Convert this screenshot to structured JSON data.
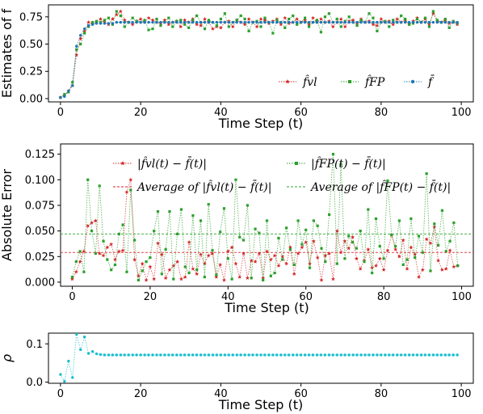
{
  "chart_data": [
    {
      "type": "line",
      "xlabel": "Time Step (t)",
      "ylabel": "Estimates of f̄",
      "xlim": [
        -3,
        103
      ],
      "ylim": [
        -0.03,
        0.86
      ],
      "xticks": [
        "0",
        "20",
        "40",
        "60",
        "80",
        "100"
      ],
      "yticks": [
        "0.00",
        "0.25",
        "0.50",
        "0.75"
      ],
      "grid": false,
      "legend_position": "lower-right",
      "series": [
        {
          "name": "f̂vl",
          "color": "#d62728",
          "marker": "star",
          "values": [
            0.01,
            0.03,
            0.07,
            0.12,
            0.4,
            0.55,
            0.62,
            0.7,
            0.69,
            0.7,
            0.73,
            0.7,
            0.68,
            0.73,
            0.77,
            0.8,
            0.72,
            0.7,
            0.68,
            0.71,
            0.73,
            0.7,
            0.74,
            0.72,
            0.7,
            0.69,
            0.72,
            0.68,
            0.7,
            0.71,
            0.66,
            0.72,
            0.7,
            0.73,
            0.68,
            0.67,
            0.73,
            0.7,
            0.64,
            0.66,
            0.65,
            0.7,
            0.71,
            0.66,
            0.72,
            0.7,
            0.68,
            0.73,
            0.7,
            0.66,
            0.73,
            0.72,
            0.69,
            0.71,
            0.73,
            0.68,
            0.74,
            0.69,
            0.7,
            0.73,
            0.7,
            0.72,
            0.68,
            0.74,
            0.7,
            0.73,
            0.7,
            0.71,
            0.66,
            0.7,
            0.73,
            0.66,
            0.71,
            0.72,
            0.69,
            0.73,
            0.7,
            0.71,
            0.68,
            0.67,
            0.73,
            0.7,
            0.71,
            0.68,
            0.73,
            0.7,
            0.72,
            0.68,
            0.71,
            0.74,
            0.7,
            0.73,
            0.68,
            0.78,
            0.71,
            0.7,
            0.72,
            0.69,
            0.7,
            0.68
          ]
        },
        {
          "name": "f̂FP",
          "color": "#2ca02c",
          "marker": "square",
          "values": [
            0.01,
            0.04,
            0.06,
            0.15,
            0.45,
            0.5,
            0.6,
            0.66,
            0.7,
            0.71,
            0.7,
            0.72,
            0.74,
            0.68,
            0.8,
            0.76,
            0.66,
            0.7,
            0.74,
            0.71,
            0.7,
            0.72,
            0.63,
            0.64,
            0.73,
            0.67,
            0.7,
            0.74,
            0.66,
            0.71,
            0.72,
            0.68,
            0.65,
            0.72,
            0.76,
            0.7,
            0.64,
            0.72,
            0.7,
            0.67,
            0.73,
            0.78,
            0.66,
            0.7,
            0.72,
            0.76,
            0.73,
            0.62,
            0.7,
            0.71,
            0.66,
            0.74,
            0.7,
            0.6,
            0.72,
            0.7,
            0.65,
            0.73,
            0.76,
            0.68,
            0.7,
            0.74,
            0.66,
            0.7,
            0.72,
            0.61,
            0.75,
            0.78,
            0.7,
            0.73,
            0.66,
            0.71,
            0.75,
            0.7,
            0.67,
            0.72,
            0.7,
            0.78,
            0.74,
            0.62,
            0.7,
            0.71,
            0.66,
            0.72,
            0.7,
            0.76,
            0.73,
            0.68,
            0.69,
            0.73,
            0.7,
            0.74,
            0.66,
            0.8,
            0.72,
            0.7,
            0.73,
            0.65,
            0.71,
            0.69
          ]
        },
        {
          "name": "f̄",
          "color": "#1f77b4",
          "marker": "dot",
          "values": [
            0.01,
            0.02,
            0.07,
            0.12,
            0.48,
            0.58,
            0.64,
            0.67,
            0.68,
            0.69,
            0.69,
            0.69,
            0.69,
            0.69,
            0.7,
            0.7,
            0.7,
            0.7,
            0.7,
            0.7,
            0.7,
            0.7,
            0.7,
            0.7,
            0.7,
            0.7,
            0.7,
            0.7,
            0.7,
            0.7,
            0.7,
            0.7,
            0.7,
            0.7,
            0.7,
            0.7,
            0.7,
            0.7,
            0.7,
            0.7,
            0.7,
            0.7,
            0.7,
            0.7,
            0.7,
            0.7,
            0.7,
            0.7,
            0.7,
            0.7,
            0.7,
            0.7,
            0.7,
            0.7,
            0.7,
            0.7,
            0.7,
            0.7,
            0.7,
            0.7,
            0.7,
            0.7,
            0.7,
            0.7,
            0.7,
            0.7,
            0.7,
            0.7,
            0.7,
            0.7,
            0.7,
            0.7,
            0.7,
            0.7,
            0.7,
            0.7,
            0.7,
            0.7,
            0.7,
            0.7,
            0.7,
            0.7,
            0.7,
            0.7,
            0.7,
            0.7,
            0.7,
            0.7,
            0.7,
            0.7,
            0.7,
            0.7,
            0.7,
            0.7,
            0.7,
            0.7,
            0.7,
            0.7,
            0.7,
            0.7
          ]
        }
      ]
    },
    {
      "type": "line",
      "xlabel": "Time Step (t)",
      "ylabel": "Absolute Error",
      "xlim": [
        -3,
        103
      ],
      "ylim": [
        -0.004,
        0.135
      ],
      "xticks": [
        "0",
        "20",
        "40",
        "60",
        "80",
        "100"
      ],
      "yticks": [
        "0.000",
        "0.025",
        "0.050",
        "0.075",
        "0.100",
        "0.125"
      ],
      "grid": false,
      "legend_position": "top",
      "series": [
        {
          "name": "|f̂vl(t) − f̄(t)|",
          "color": "#d62728",
          "marker": "star",
          "values": [
            0.003,
            0.01,
            0.02,
            0.03,
            0.055,
            0.058,
            0.06,
            0.028,
            0.026,
            0.034,
            0.037,
            0.022,
            0.03,
            0.031,
            0.088,
            0.1,
            0.022,
            0.006,
            0.018,
            0.002,
            0.015,
            0.003,
            0.038,
            0.027,
            0.004,
            0.012,
            0.016,
            0.02,
            0.003,
            0.005,
            0.039,
            0.013,
            0.008,
            0.027,
            0.018,
            0.026,
            0.028,
            0.005,
            0.017,
            0.002,
            0.03,
            0.034,
            0.018,
            0.005,
            0.028,
            0.004,
            0.021,
            0.02,
            0.028,
            0.004,
            0.03,
            0.022,
            0.026,
            0.016,
            0.025,
            0.018,
            0.034,
            0.008,
            0.028,
            0.034,
            0.039,
            0.018,
            0.04,
            0.024,
            0.002,
            0.026,
            0.028,
            0.003,
            0.05,
            0.029,
            0.04,
            0.033,
            0.044,
            0.023,
            0.013,
            0.021,
            0.032,
            0.014,
            0.016,
            0.023,
            0.012,
            0.031,
            0.046,
            0.032,
            0.025,
            0.041,
            0.013,
            0.034,
            0.027,
            0.005,
            0.012,
            0.042,
            0.038,
            0.054,
            0.021,
            0.012,
            0.013,
            0.031,
            0.015,
            0.016
          ]
        },
        {
          "name": "|f̂FP(t) − f̄(t)|",
          "color": "#2ca02c",
          "marker": "square",
          "values": [
            0.005,
            0.02,
            0.03,
            0.01,
            0.1,
            0.05,
            0.028,
            0.094,
            0.04,
            0.022,
            0.012,
            0.017,
            0.047,
            0.056,
            0.01,
            0.09,
            0.041,
            0.002,
            0.011,
            0.02,
            0.024,
            0.05,
            0.069,
            0.008,
            0.032,
            0.069,
            0.003,
            0.047,
            0.071,
            0.015,
            0.009,
            0.065,
            0.012,
            0.06,
            0.005,
            0.076,
            0.031,
            0.007,
            0.049,
            0.072,
            0.023,
            0.003,
            0.1,
            0.044,
            0.041,
            0.075,
            0.004,
            0.052,
            0.048,
            0.002,
            0.06,
            0.006,
            0.009,
            0.043,
            0.022,
            0.053,
            0.032,
            0.017,
            0.06,
            0.037,
            0.051,
            0.014,
            0.06,
            0.055,
            0.033,
            0.02,
            0.066,
            0.125,
            0.018,
            0.115,
            0.023,
            0.045,
            0.039,
            0.033,
            0.05,
            0.02,
            0.071,
            0.009,
            0.062,
            0.035,
            0.023,
            0.099,
            0.046,
            0.035,
            0.06,
            0.017,
            0.022,
            0.062,
            0.024,
            0.045,
            0.029,
            0.106,
            0.011,
            0.057,
            0.036,
            0.07,
            0.03,
            0.04,
            0.058,
            0.016
          ]
        },
        {
          "name": "Average of |f̂vl(t) − f̄(t)|",
          "color": "#d62728",
          "style": "dashed-horizontal",
          "value": 0.029
        },
        {
          "name": "Average of |f̂FP(t) − f̄(t)|",
          "color": "#2ca02c",
          "style": "dashed-horizontal",
          "value": 0.047
        }
      ]
    },
    {
      "type": "line",
      "xlabel": "Time Step (t)",
      "ylabel": "ρ",
      "xlim": [
        -3,
        103
      ],
      "ylim": [
        -0.003,
        0.128
      ],
      "xticks": [
        "0",
        "20",
        "40",
        "60",
        "80",
        "100"
      ],
      "yticks": [
        "0.0",
        "0.1"
      ],
      "grid": false,
      "series": [
        {
          "color": "#17becf",
          "marker": "dot",
          "values": [
            0.02,
            0.002,
            0.055,
            0.012,
            0.125,
            0.085,
            0.118,
            0.075,
            0.08,
            0.074,
            0.072,
            0.071,
            0.071,
            0.071,
            0.071,
            0.071,
            0.071,
            0.071,
            0.071,
            0.071,
            0.071,
            0.071,
            0.071,
            0.071,
            0.071,
            0.071,
            0.071,
            0.071,
            0.071,
            0.071,
            0.071,
            0.071,
            0.071,
            0.071,
            0.071,
            0.071,
            0.071,
            0.071,
            0.071,
            0.071,
            0.071,
            0.071,
            0.071,
            0.071,
            0.071,
            0.071,
            0.071,
            0.071,
            0.071,
            0.071,
            0.071,
            0.071,
            0.071,
            0.071,
            0.071,
            0.071,
            0.071,
            0.071,
            0.071,
            0.071,
            0.071,
            0.071,
            0.071,
            0.071,
            0.071,
            0.071,
            0.071,
            0.071,
            0.071,
            0.071,
            0.071,
            0.071,
            0.071,
            0.071,
            0.071,
            0.071,
            0.071,
            0.071,
            0.071,
            0.071,
            0.071,
            0.071,
            0.071,
            0.071,
            0.071,
            0.071,
            0.071,
            0.071,
            0.071,
            0.071,
            0.071,
            0.071,
            0.071,
            0.071,
            0.071,
            0.071,
            0.071,
            0.071,
            0.071,
            0.071
          ]
        }
      ]
    }
  ]
}
